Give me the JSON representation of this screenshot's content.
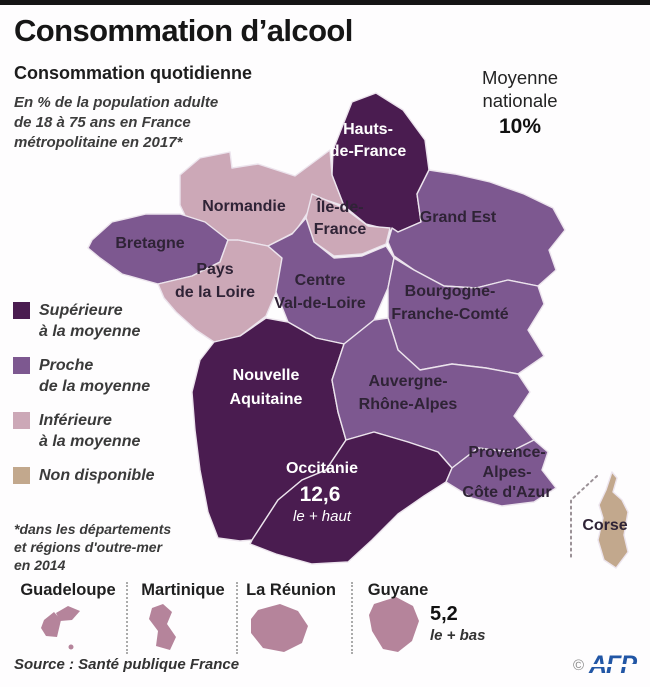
{
  "title": "Consommation d’alcool",
  "subtitle": "Consommation quotidienne",
  "description": {
    "line1": "En % de la population adulte",
    "line2": "de 18 à 75 ans en France",
    "line3": "métropolitaine en 2017*"
  },
  "national_average": {
    "line1": "Moyenne",
    "line2": "nationale",
    "value": "10%"
  },
  "legend": {
    "items": [
      {
        "key": "superieure",
        "line1": "Supérieure",
        "line2": "à la moyenne",
        "color": "#4a1c50"
      },
      {
        "key": "proche",
        "line1": "Proche",
        "line2": "de la moyenne",
        "color": "#7d5890"
      },
      {
        "key": "inferieure",
        "line1": "Inférieure",
        "line2": "à la moyenne",
        "color": "#cca8b7"
      },
      {
        "key": "non_disponible",
        "line1": "Non disponible",
        "line2": "",
        "color": "#c2a88d"
      }
    ]
  },
  "footnote": {
    "line1": "*dans les départements",
    "line2": "et régions d'outre-mer",
    "line3": "en 2014"
  },
  "map": {
    "regions": [
      {
        "key": "hauts_de_france",
        "labels": [
          "Hauts-",
          "de-France"
        ],
        "category": "superieure",
        "label_color": "#ffffff"
      },
      {
        "key": "normandie",
        "labels": [
          "Normandie"
        ],
        "category": "inferieure",
        "label_color": "#2f2336"
      },
      {
        "key": "ile_de_france",
        "labels": [
          "Île-de-",
          "France"
        ],
        "category": "inferieure",
        "label_color": "#2f2336"
      },
      {
        "key": "grand_est",
        "labels": [
          "Grand Est"
        ],
        "category": "proche",
        "label_color": "#2f2336"
      },
      {
        "key": "bretagne",
        "labels": [
          "Bretagne"
        ],
        "category": "proche",
        "label_color": "#2f2336"
      },
      {
        "key": "pays_de_la_loire",
        "labels": [
          "Pays",
          "de la Loire"
        ],
        "category": "inferieure",
        "label_color": "#2f2336"
      },
      {
        "key": "centre_val_de_loire",
        "labels": [
          "Centre",
          "Val-de-Loire"
        ],
        "category": "proche",
        "label_color": "#2f2336"
      },
      {
        "key": "bourgogne_franche_comte",
        "labels": [
          "Bourgogne-",
          "Franche-Comté"
        ],
        "category": "proche",
        "label_color": "#2f2336"
      },
      {
        "key": "nouvelle_aquitaine",
        "labels": [
          "Nouvelle",
          "Aquitaine"
        ],
        "category": "superieure",
        "label_color": "#ffffff"
      },
      {
        "key": "auvergne_rhone_alpes",
        "labels": [
          "Auvergne-",
          "Rhône-Alpes"
        ],
        "category": "proche",
        "label_color": "#2f2336"
      },
      {
        "key": "occitanie",
        "labels": [
          "Occitanie"
        ],
        "category": "superieure",
        "label_color": "#ffffff",
        "value": "12,6",
        "value_note": "le + haut"
      },
      {
        "key": "provence_alpes_cote_dazur",
        "labels": [
          "Provence-",
          "Alpes-",
          "Côte d'Azur"
        ],
        "category": "proche",
        "label_color": "#2f2336"
      },
      {
        "key": "corse",
        "labels": [
          "Corse"
        ],
        "category": "non_disponible",
        "label_color": "#2f2336"
      }
    ]
  },
  "overseas": {
    "color": "#b5849b",
    "territories": [
      {
        "key": "guadeloupe",
        "name": "Guadeloupe"
      },
      {
        "key": "martinique",
        "name": "Martinique"
      },
      {
        "key": "la_reunion",
        "name": "La Réunion"
      },
      {
        "key": "guyane",
        "name": "Guyane",
        "value": "5,2",
        "note": "le + bas"
      }
    ]
  },
  "source": "Source : Santé publique France",
  "credit": {
    "copyright": "©",
    "agency": "AFP",
    "color": "#2156a5"
  },
  "chart_data": {
    "type": "table",
    "title": "Consommation d’alcool — Consommation quotidienne",
    "unit": "% de la population adulte de 18 à 75 ans en France métropolitaine en 2017 (outre-mer : 2014)",
    "national_average_pct": 10,
    "categories_legend": [
      "Supérieure à la moyenne",
      "Proche de la moyenne",
      "Inférieure à la moyenne",
      "Non disponible"
    ],
    "regions": [
      {
        "name": "Hauts-de-France",
        "category": "Supérieure à la moyenne"
      },
      {
        "name": "Normandie",
        "category": "Inférieure à la moyenne"
      },
      {
        "name": "Île-de-France",
        "category": "Inférieure à la moyenne"
      },
      {
        "name": "Grand Est",
        "category": "Proche de la moyenne"
      },
      {
        "name": "Bretagne",
        "category": "Proche de la moyenne"
      },
      {
        "name": "Pays de la Loire",
        "category": "Inférieure à la moyenne"
      },
      {
        "name": "Centre Val-de-Loire",
        "category": "Proche de la moyenne"
      },
      {
        "name": "Bourgogne-Franche-Comté",
        "category": "Proche de la moyenne"
      },
      {
        "name": "Nouvelle Aquitaine",
        "category": "Supérieure à la moyenne"
      },
      {
        "name": "Auvergne-Rhône-Alpes",
        "category": "Proche de la moyenne"
      },
      {
        "name": "Occitanie",
        "category": "Supérieure à la moyenne",
        "value_pct": 12.6,
        "note": "le + haut"
      },
      {
        "name": "Provence-Alpes-Côte d'Azur",
        "category": "Proche de la moyenne"
      },
      {
        "name": "Corse",
        "category": "Non disponible"
      },
      {
        "name": "Guadeloupe",
        "category": "Inférieure à la moyenne"
      },
      {
        "name": "Martinique",
        "category": "Inférieure à la moyenne"
      },
      {
        "name": "La Réunion",
        "category": "Inférieure à la moyenne"
      },
      {
        "name": "Guyane",
        "category": "Inférieure à la moyenne",
        "value_pct": 5.2,
        "note": "le + bas"
      }
    ]
  }
}
